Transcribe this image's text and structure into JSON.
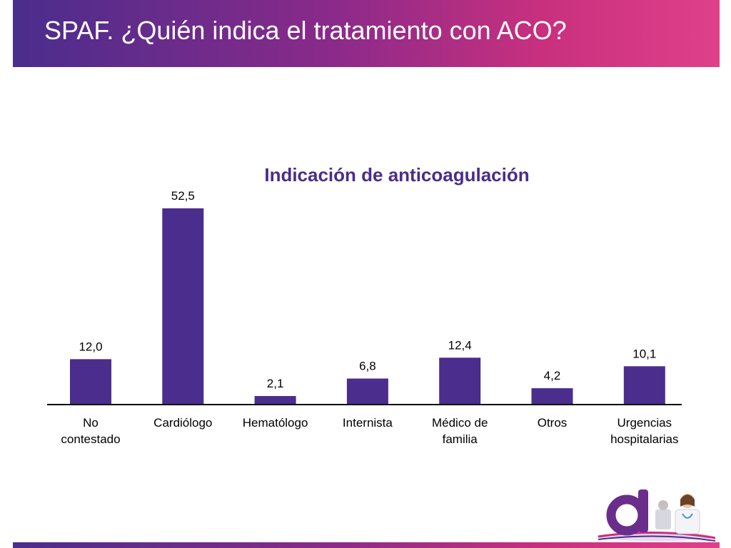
{
  "header": {
    "title": "SPAF. ¿Quién indica el tratamiento con ACO?"
  },
  "colors": {
    "bar": "#4a2d8c",
    "title": "#4a2d8c",
    "header_start": "#4a2d8c",
    "header_end": "#e0408a"
  },
  "chart_data": {
    "type": "bar",
    "title": "Indicación de anticoagulación",
    "categories": [
      [
        "No",
        "contestado"
      ],
      [
        "Cardiólogo"
      ],
      [
        "Hematólogo"
      ],
      [
        "Internista"
      ],
      [
        "Médico de",
        "familia"
      ],
      [
        "Otros"
      ],
      [
        "Urgencias",
        "hospitalarias"
      ]
    ],
    "values": [
      12.0,
      52.5,
      2.1,
      6.8,
      12.4,
      4.2,
      10.1
    ],
    "data_labels": [
      "12,0",
      "52,5",
      "2,1",
      "6,8",
      "12,4",
      "4,2",
      "10,1"
    ],
    "ylim": [
      0,
      52.5
    ],
    "grid": false,
    "legend": "none"
  },
  "logo": {
    "icon": "doctor-logo-icon"
  }
}
